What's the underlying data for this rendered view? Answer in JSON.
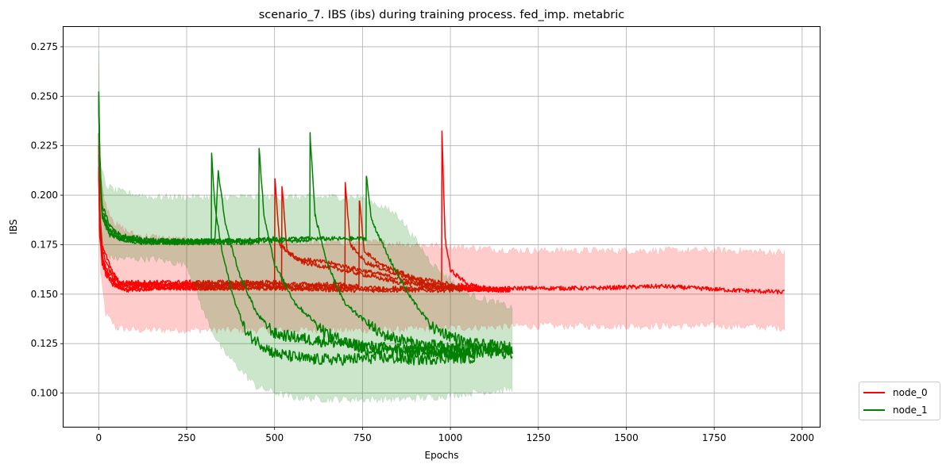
{
  "chart_data": {
    "type": "line",
    "title": "scenario_7. IBS (ibs) during training process. fed_imp. metabric",
    "xlabel": "Epochs",
    "ylabel": "IBS",
    "xlim": [
      -100,
      2050
    ],
    "ylim": [
      0.083,
      0.285
    ],
    "xticks": [
      0,
      250,
      500,
      750,
      1000,
      1250,
      1500,
      1750,
      2000
    ],
    "yticks": [
      0.1,
      0.125,
      0.15,
      0.175,
      0.2,
      0.225,
      0.25,
      0.275
    ],
    "xtick_labels": [
      "0",
      "250",
      "500",
      "750",
      "1000",
      "1250",
      "1500",
      "1750",
      "2000"
    ],
    "ytick_labels": [
      "0.100",
      "0.125",
      "0.150",
      "0.175",
      "0.200",
      "0.225",
      "0.250",
      "0.275"
    ],
    "grid": true,
    "legend_position": "outside-bottom-right",
    "colors": {
      "node_0": "#ff0000",
      "node_1": "#008000"
    },
    "series": [
      {
        "name": "node_0",
        "color": "#ff0000",
        "band": {
          "x": [
            0,
            5,
            20,
            50,
            100,
            200,
            300,
            500,
            650,
            800,
            1000,
            1200,
            1400,
            1600,
            1800,
            1950
          ],
          "lower": [
            0.2,
            0.16,
            0.14,
            0.133,
            0.132,
            0.132,
            0.132,
            0.132,
            0.132,
            0.132,
            0.133,
            0.134,
            0.134,
            0.134,
            0.134,
            0.133
          ],
          "upper": [
            0.23,
            0.21,
            0.195,
            0.185,
            0.18,
            0.178,
            0.176,
            0.176,
            0.176,
            0.176,
            0.174,
            0.172,
            0.172,
            0.172,
            0.172,
            0.171
          ]
        },
        "runs": [
          {
            "x": [
              0,
              3,
              8,
              20,
              40,
              80,
              150,
              300,
              500,
              700,
              1000,
              1200,
              1400,
              1600,
              1800,
              1950
            ],
            "y": [
              0.232,
              0.195,
              0.172,
              0.16,
              0.155,
              0.152,
              0.153,
              0.153,
              0.153,
              0.152,
              0.152,
              0.153,
              0.153,
              0.154,
              0.152,
              0.151
            ]
          },
          {
            "x": [
              0,
              3,
              10,
              30,
              60,
              500,
              501,
              515,
              560,
              650,
              800,
              900,
              1000,
              1080
            ],
            "y": [
              0.225,
              0.19,
              0.175,
              0.165,
              0.155,
              0.155,
              0.209,
              0.175,
              0.168,
              0.166,
              0.16,
              0.156,
              0.153,
              0.152
            ]
          },
          {
            "x": [
              0,
              3,
              10,
              30,
              60,
              520,
              521,
              535,
              580,
              700,
              850,
              1000,
              1100,
              1170
            ],
            "y": [
              0.22,
              0.185,
              0.172,
              0.162,
              0.156,
              0.156,
              0.205,
              0.172,
              0.166,
              0.162,
              0.156,
              0.153,
              0.152,
              0.152
            ]
          },
          {
            "x": [
              0,
              3,
              10,
              30,
              60,
              700,
              701,
              715,
              760,
              850,
              950,
              1050,
              1170
            ],
            "y": [
              0.215,
              0.183,
              0.168,
              0.16,
              0.155,
              0.155,
              0.206,
              0.175,
              0.166,
              0.16,
              0.155,
              0.153,
              0.152
            ]
          },
          {
            "x": [
              0,
              3,
              10,
              30,
              60,
              740,
              741,
              755,
              800,
              900,
              1000,
              1100,
              1170
            ],
            "y": [
              0.212,
              0.182,
              0.167,
              0.158,
              0.154,
              0.154,
              0.198,
              0.172,
              0.165,
              0.158,
              0.155,
              0.153,
              0.152
            ]
          },
          {
            "x": [
              0,
              3,
              10,
              30,
              60,
              975,
              976,
              985,
              1000,
              1050,
              1100
            ],
            "y": [
              0.21,
              0.18,
              0.165,
              0.158,
              0.153,
              0.153,
              0.232,
              0.178,
              0.162,
              0.155,
              0.153
            ]
          }
        ]
      },
      {
        "name": "node_1",
        "color": "#008000",
        "band": {
          "x": [
            0,
            5,
            20,
            50,
            150,
            250,
            300,
            350,
            450,
            550,
            650,
            750,
            850,
            950,
            1050,
            1176
          ],
          "lower": [
            0.215,
            0.18,
            0.17,
            0.168,
            0.168,
            0.165,
            0.14,
            0.122,
            0.103,
            0.098,
            0.097,
            0.097,
            0.097,
            0.098,
            0.1,
            0.102
          ],
          "upper": [
            0.275,
            0.215,
            0.205,
            0.202,
            0.199,
            0.199,
            0.199,
            0.199,
            0.199,
            0.199,
            0.199,
            0.199,
            0.19,
            0.165,
            0.15,
            0.143
          ]
        },
        "runs": [
          {
            "x": [
              0,
              3,
              10,
              30,
              60,
              120,
              200,
              320,
              321,
              330,
              350,
              380,
              420,
              500,
              600,
              700,
              800,
              900,
              1000,
              1070
            ],
            "y": [
              0.252,
              0.22,
              0.195,
              0.185,
              0.18,
              0.178,
              0.177,
              0.177,
              0.221,
              0.195,
              0.172,
              0.15,
              0.13,
              0.12,
              0.117,
              0.117,
              0.118,
              0.117,
              0.118,
              0.118
            ]
          },
          {
            "x": [
              0,
              3,
              10,
              30,
              60,
              120,
              200,
              330,
              340,
              360,
              400,
              450,
              500,
              600,
              700,
              800,
              900,
              1000,
              1070
            ],
            "y": [
              0.25,
              0.218,
              0.192,
              0.183,
              0.179,
              0.177,
              0.176,
              0.176,
              0.212,
              0.185,
              0.16,
              0.14,
              0.13,
              0.127,
              0.125,
              0.123,
              0.122,
              0.121,
              0.12
            ]
          },
          {
            "x": [
              0,
              3,
              10,
              30,
              60,
              120,
              200,
              300,
              455,
              456,
              470,
              500,
              560,
              650,
              750,
              850,
              950,
              1050,
              1176
            ],
            "y": [
              0.248,
              0.216,
              0.19,
              0.182,
              0.178,
              0.176,
              0.176,
              0.176,
              0.176,
              0.224,
              0.19,
              0.165,
              0.145,
              0.13,
              0.122,
              0.121,
              0.121,
              0.121,
              0.12
            ]
          },
          {
            "x": [
              0,
              3,
              10,
              30,
              60,
              120,
              200,
              300,
              400,
              500,
              600,
              601,
              615,
              650,
              700,
              800,
              900,
              1000,
              1100,
              1176
            ],
            "y": [
              0.246,
              0.214,
              0.189,
              0.181,
              0.178,
              0.177,
              0.177,
              0.177,
              0.177,
              0.177,
              0.177,
              0.231,
              0.19,
              0.165,
              0.145,
              0.13,
              0.125,
              0.123,
              0.122,
              0.122
            ]
          },
          {
            "x": [
              0,
              3,
              10,
              30,
              60,
              120,
              200,
              300,
              400,
              500,
              600,
              700,
              760,
              761,
              775,
              820,
              880,
              950,
              1050,
              1176
            ],
            "y": [
              0.244,
              0.212,
              0.188,
              0.18,
              0.178,
              0.177,
              0.177,
              0.177,
              0.177,
              0.178,
              0.178,
              0.178,
              0.178,
              0.21,
              0.188,
              0.17,
              0.15,
              0.133,
              0.125,
              0.123
            ]
          }
        ]
      }
    ]
  }
}
